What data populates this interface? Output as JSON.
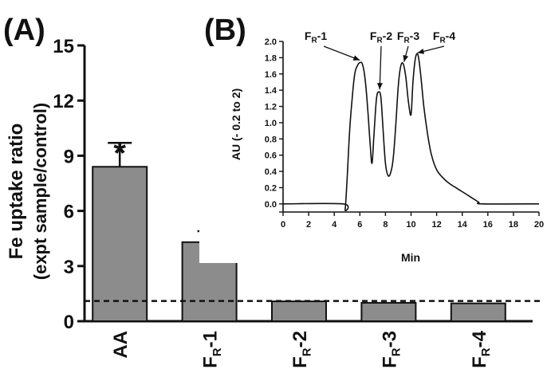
{
  "colors": {
    "bar_fill": "#8c8c8c",
    "stroke": "#111111",
    "background": "#ffffff"
  },
  "chart_data": [
    {
      "panel_label": "(A)",
      "type": "bar",
      "ylabel_line1": "Fe uptake ratio",
      "ylabel_line2": "(expt sample/control)",
      "xlabel": "",
      "categories": [
        {
          "base": "AA",
          "sub": "",
          "suffix": ""
        },
        {
          "base": "F",
          "sub": "R",
          "suffix": "-1"
        },
        {
          "base": "F",
          "sub": "R",
          "suffix": "-2"
        },
        {
          "base": "F",
          "sub": "R",
          "suffix": "-3"
        },
        {
          "base": "F",
          "sub": "R",
          "suffix": "-4"
        }
      ],
      "values": [
        8.4,
        4.3,
        1.08,
        1.0,
        0.97
      ],
      "errors": [
        1.3,
        0.6,
        0.05,
        0.05,
        0.05
      ],
      "significance": [
        "*",
        "*",
        "",
        "",
        ""
      ],
      "reference_line": 1.1,
      "ylim": [
        0,
        15
      ],
      "yticks": [
        0,
        3,
        6,
        9,
        12,
        15
      ],
      "grid": false
    },
    {
      "panel_label": "(B)",
      "type": "line",
      "ylabel": "AU (- 0.2 to 2)",
      "xlabel": "Min",
      "xlim": [
        0,
        20
      ],
      "ylim": [
        -0.1,
        2.0
      ],
      "xticks": [
        0,
        2,
        4,
        6,
        8,
        10,
        12,
        14,
        16,
        18,
        20
      ],
      "yticks": [
        -0.1,
        0.0,
        0.2,
        0.4,
        0.6,
        0.8,
        1.0,
        1.2,
        1.4,
        1.6,
        1.8,
        2.0
      ],
      "ytick_labels": [
        "",
        "0.0",
        "0.2",
        "0.4",
        "0.6",
        "0.8",
        "1.0",
        "1.2",
        "1.4",
        "1.6",
        "1.8",
        "2.0"
      ],
      "grid": false,
      "series": [
        {
          "x": [
            0,
            4.7,
            4.85,
            5.0,
            5.2,
            5.4,
            5.6,
            5.8,
            6.0,
            6.2,
            6.4,
            6.6,
            6.8,
            6.95,
            7.1,
            7.3,
            7.5,
            7.65,
            7.8,
            8.0,
            8.2,
            8.4,
            8.6,
            8.8,
            9.0,
            9.2,
            9.4,
            9.6,
            9.8,
            10.0,
            10.15,
            10.35,
            10.55,
            10.75,
            11.0,
            11.3,
            11.6,
            12.0,
            12.5,
            13.0,
            13.5,
            14.0,
            14.5,
            15.0,
            15.3,
            15.6,
            20
          ],
          "y": [
            0.0,
            0.0,
            -0.07,
            0.3,
            0.9,
            1.3,
            1.6,
            1.7,
            1.74,
            1.72,
            1.55,
            1.2,
            0.75,
            0.5,
            0.85,
            1.3,
            1.38,
            1.3,
            0.95,
            0.5,
            0.35,
            0.38,
            0.55,
            0.95,
            1.45,
            1.7,
            1.72,
            1.55,
            1.25,
            1.1,
            1.5,
            1.8,
            1.83,
            1.6,
            1.2,
            0.85,
            0.6,
            0.42,
            0.32,
            0.25,
            0.2,
            0.15,
            0.1,
            0.05,
            0.02,
            0.0,
            0.0
          ]
        }
      ],
      "annotations": [
        {
          "base": "F",
          "sub": "R",
          "suffix": "-1",
          "x": 6.0,
          "y": 1.74
        },
        {
          "base": "F",
          "sub": "R",
          "suffix": "-2",
          "x": 7.55,
          "y": 1.38
        },
        {
          "base": "F",
          "sub": "R",
          "suffix": "-3",
          "x": 9.45,
          "y": 1.72
        },
        {
          "base": "F",
          "sub": "R",
          "suffix": "-4",
          "x": 10.5,
          "y": 1.83
        }
      ]
    }
  ]
}
